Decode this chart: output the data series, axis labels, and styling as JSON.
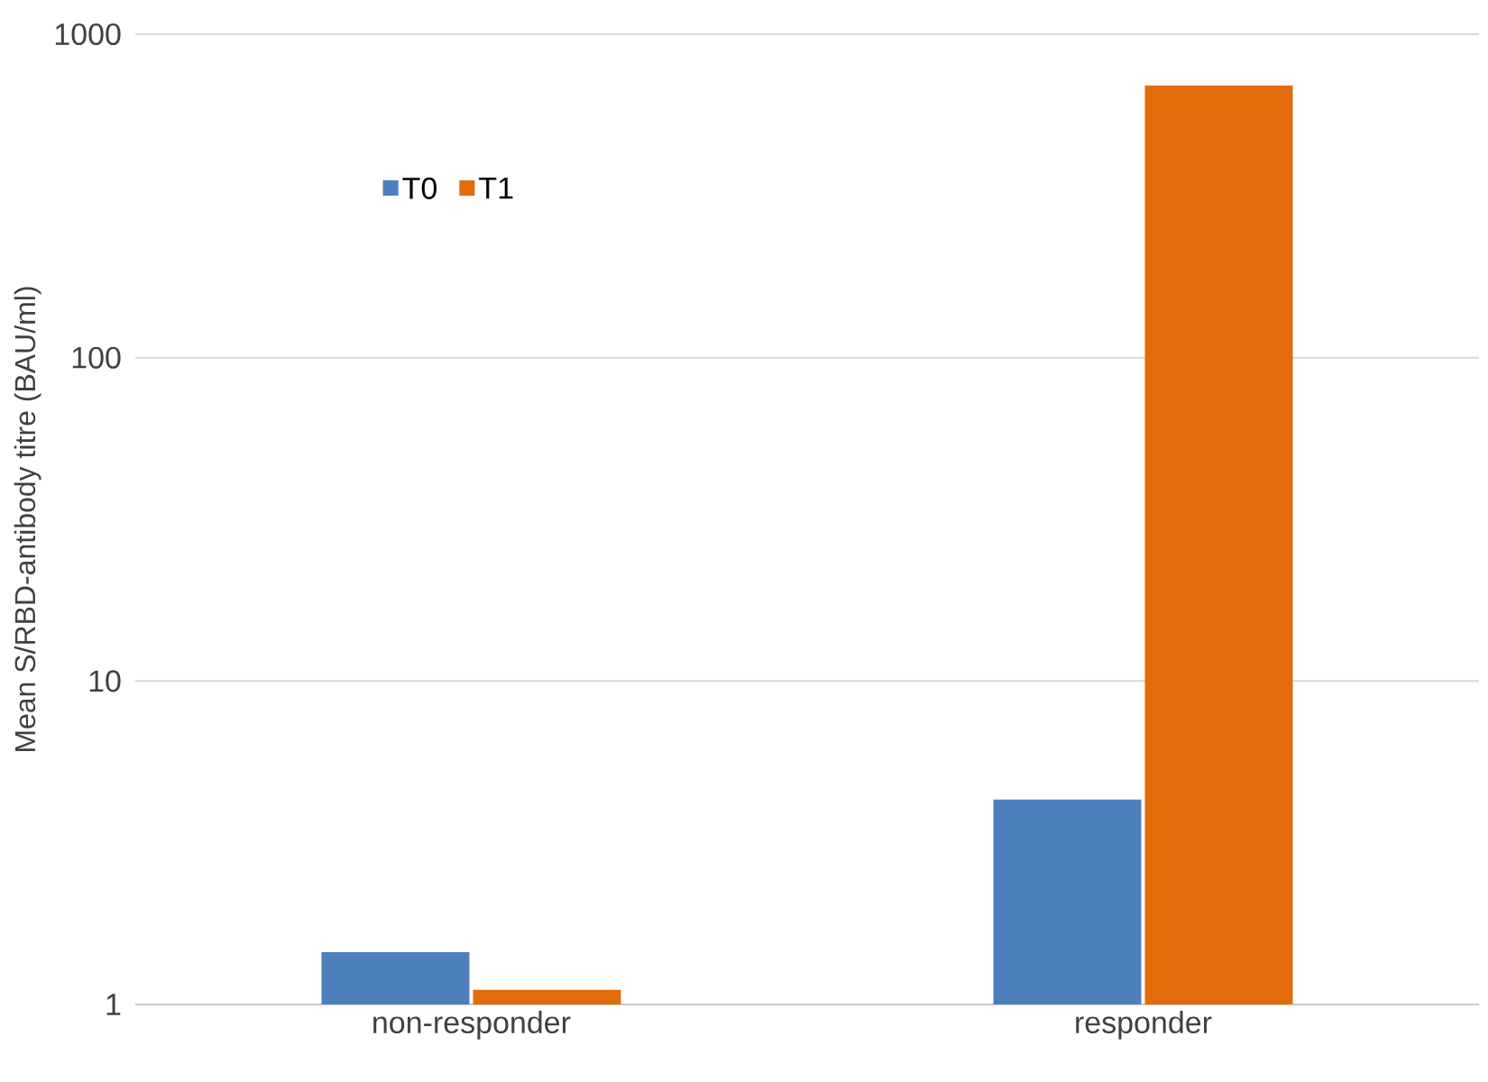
{
  "chart_data": {
    "type": "bar",
    "ylabel": "Mean S/RBD-antibody titre (BAU/ml)",
    "categories": [
      "non-responder",
      "responder"
    ],
    "series": [
      {
        "name": "T0",
        "color": "#4e7fbd",
        "values": [
          1.45,
          4.3
        ]
      },
      {
        "name": "T1",
        "color": "#e36c0a",
        "values": [
          1.11,
          695
        ]
      }
    ],
    "log": "y",
    "ylim": [
      1,
      1000
    ],
    "yticks": [
      1,
      10,
      100,
      1000
    ],
    "grid": "y",
    "legend": "top left"
  }
}
